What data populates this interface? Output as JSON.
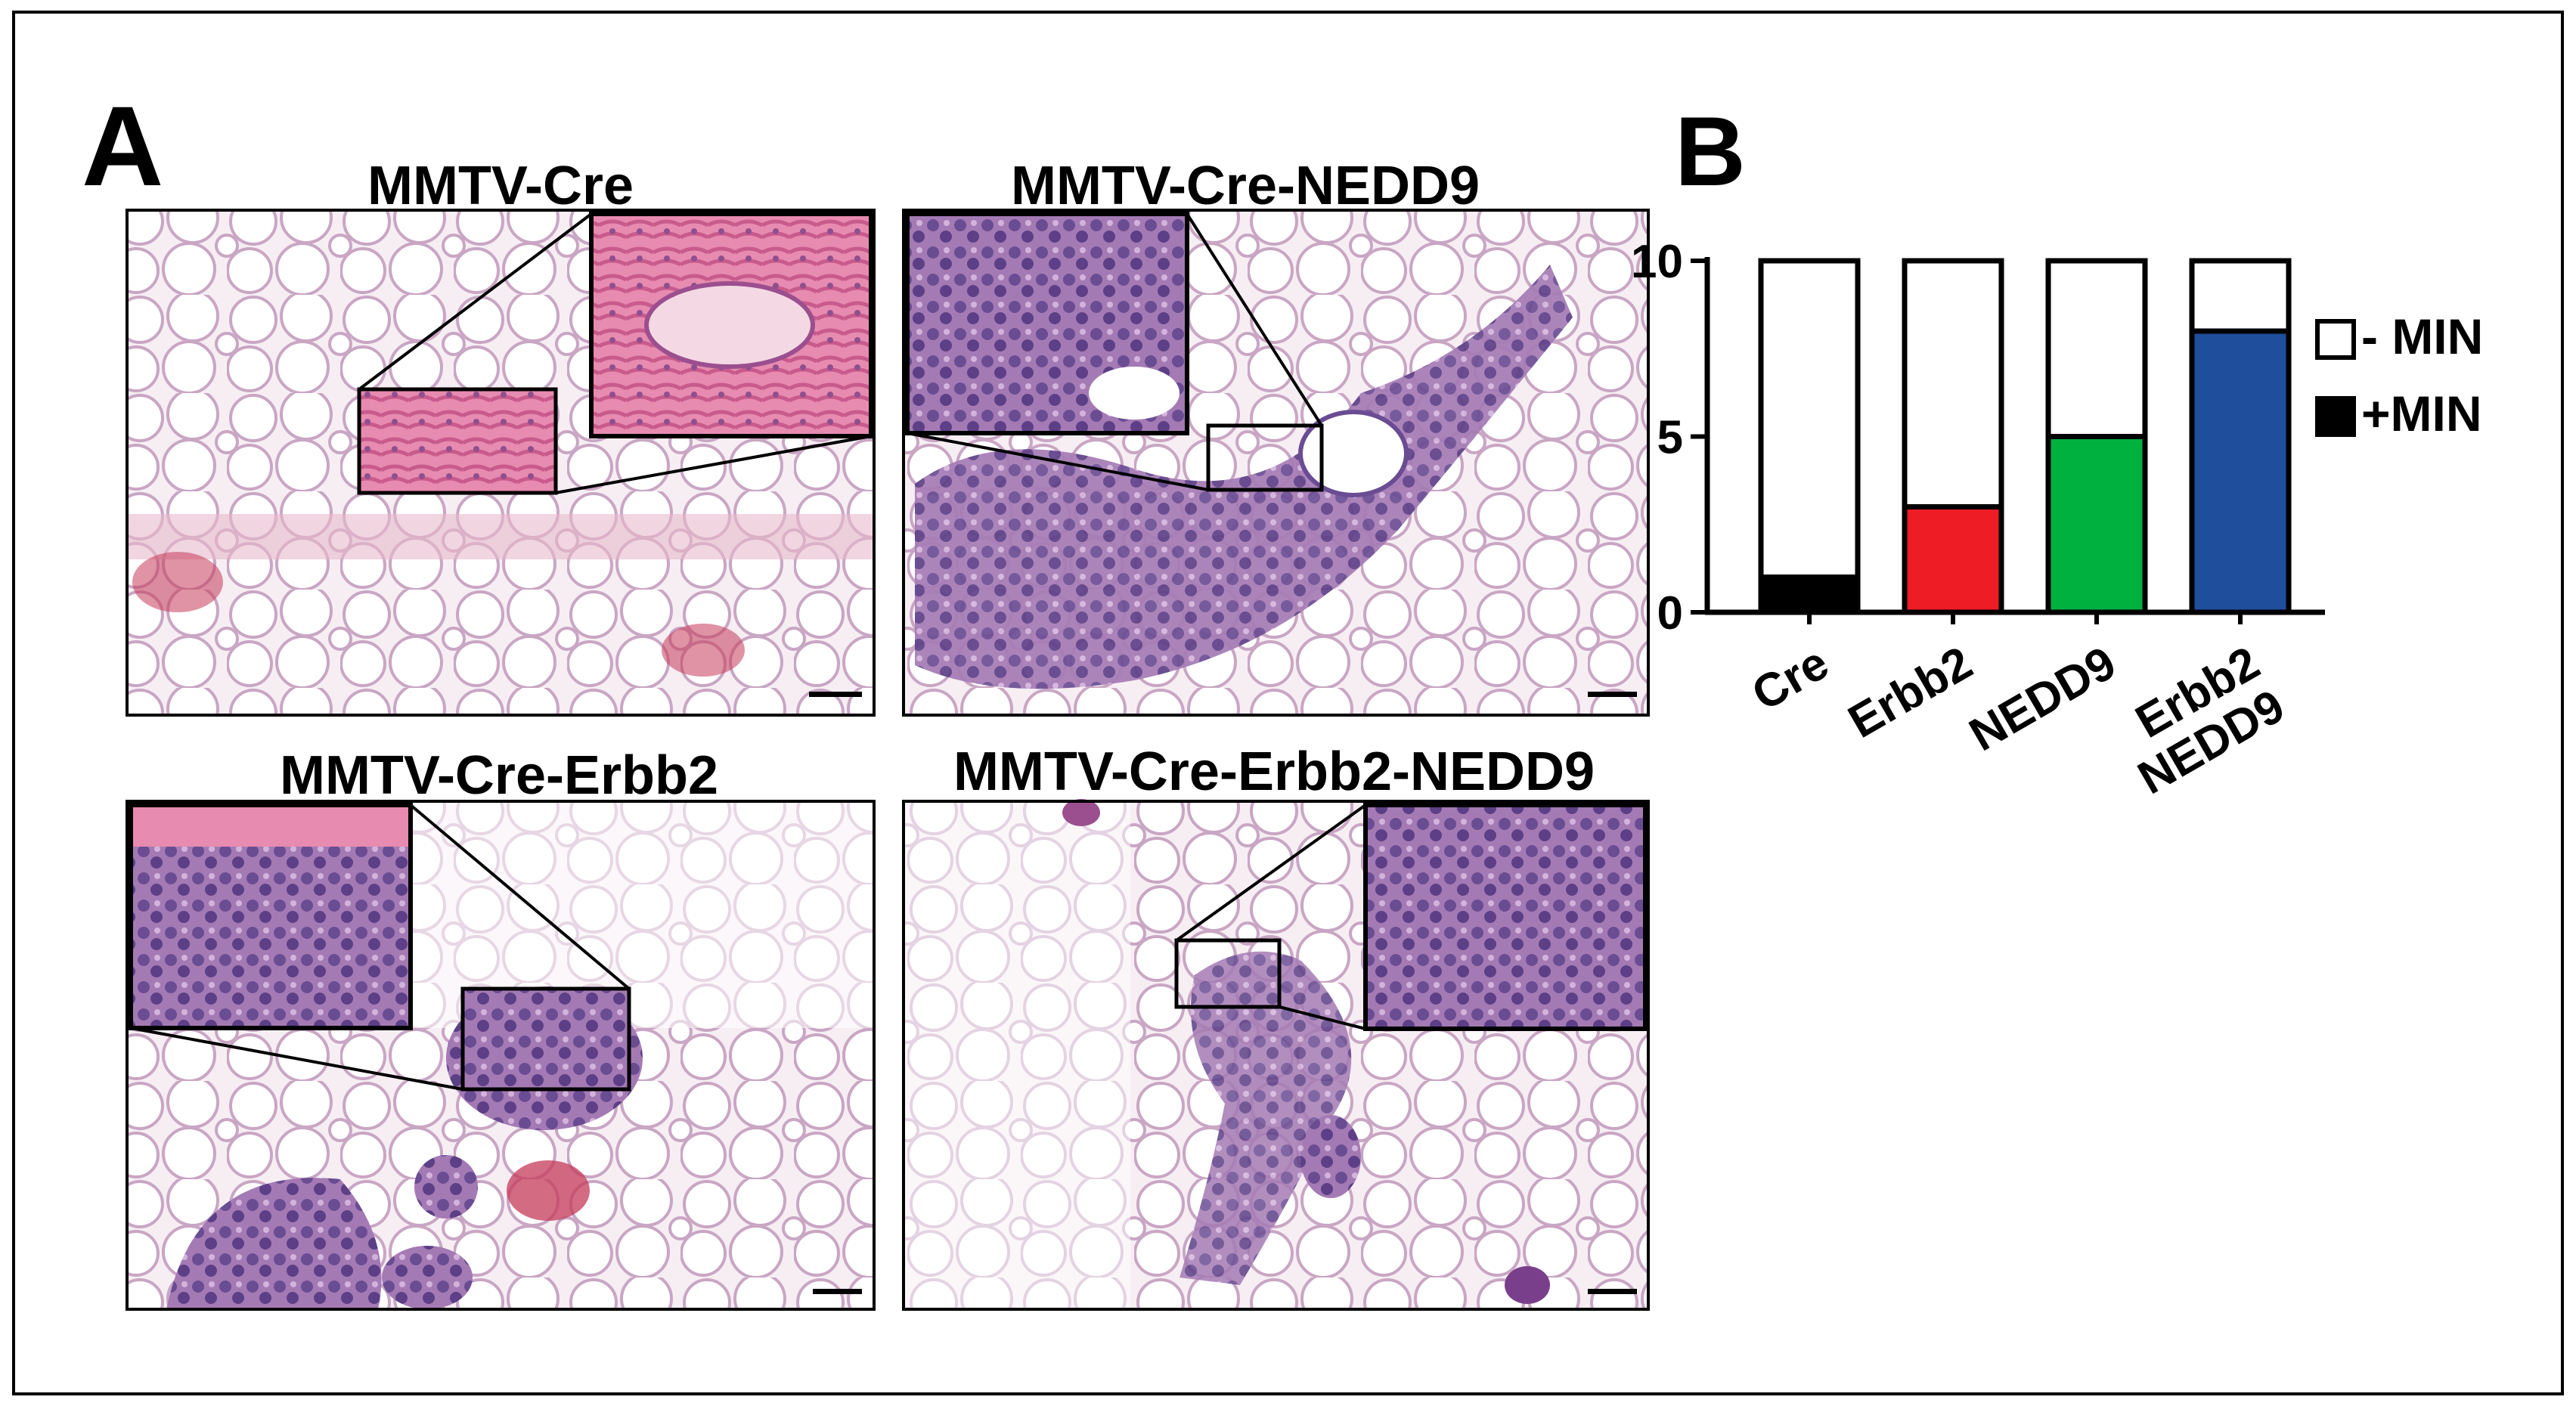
{
  "panel_a": {
    "label": "A",
    "panels": [
      {
        "title": "MMTV-Cre",
        "tissue": "pink"
      },
      {
        "title": "MMTV-Cre-NEDD9",
        "tissue": "purple"
      },
      {
        "title": "MMTV-Cre-Erbb2",
        "tissue": "purple"
      },
      {
        "title": "MMTV-Cre-Erbb2-NEDD9",
        "tissue": "purple"
      }
    ]
  },
  "panel_b": {
    "label": "B",
    "legend": {
      "neg_label": "- MIN",
      "pos_label": "+MIN"
    }
  },
  "chart_data": {
    "type": "bar",
    "stacked": true,
    "categories": [
      "Cre",
      "Erbb2",
      "NEDD9",
      "Erbb2\nNEDD9"
    ],
    "series": [
      {
        "name": "+MIN",
        "values": [
          1,
          3,
          5,
          8
        ],
        "colors": [
          "#000000",
          "#ee1c24",
          "#00b140",
          "#1f4e9c"
        ]
      },
      {
        "name": "- MIN",
        "values": [
          9,
          7,
          5,
          2
        ],
        "color": "#ffffff"
      }
    ],
    "ylim": [
      0,
      10
    ],
    "yticks": [
      "0",
      "5",
      "10"
    ],
    "xlabel": "",
    "ylabel": "",
    "grid": false,
    "legend_position": "right"
  }
}
